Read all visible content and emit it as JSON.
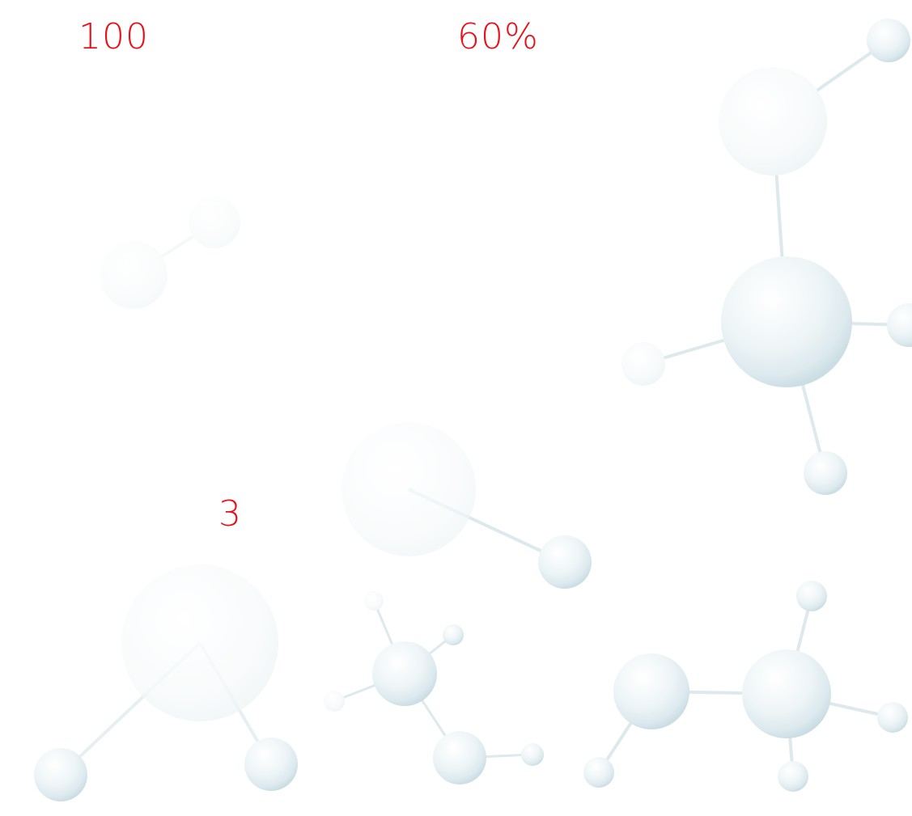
{
  "stats": {
    "first": "100",
    "second": "60%",
    "third": "3"
  },
  "colors": {
    "stat_text": "#e8101a",
    "background": "#ffffff",
    "sphere_fill": "#e3eef2",
    "sphere_edge": "#c4d8df",
    "bond": "#dde9ed"
  },
  "decoration": {
    "icon": "molecule-icon"
  }
}
